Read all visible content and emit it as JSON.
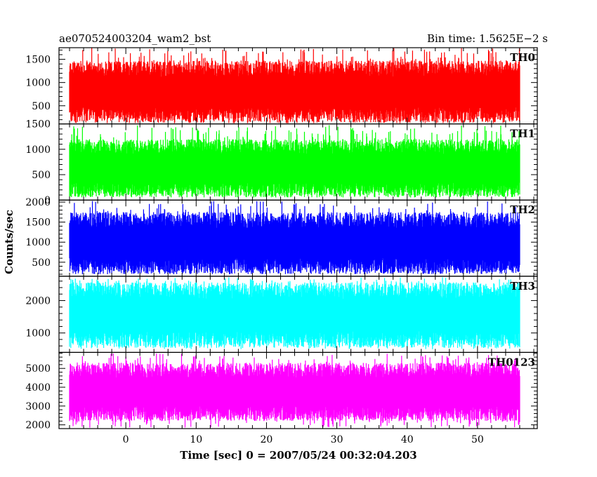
{
  "header": {
    "title": "ae070524003204_wam2_bst",
    "bin_time": "Bin time: 1.5625E−2 s"
  },
  "ylabel": "Counts/sec",
  "xlabel": "Time [sec] 0 = 2007/05/24 00:32:04.203",
  "chart_data": {
    "type": "line",
    "x_range": [
      -8.0,
      56.0
    ],
    "xlim": [
      -9.5,
      58.5
    ],
    "x_ticks": [
      0,
      10,
      20,
      30,
      40,
      50
    ],
    "x_tick_labels": [
      "0",
      "10",
      "20",
      "30",
      "40",
      "50"
    ],
    "bin_time": 0.015625,
    "panels": [
      {
        "name": "TH0",
        "color": "#ff0000",
        "ylim": [
          110,
          1750
        ],
        "ticks": [
          500,
          1000,
          1500
        ],
        "tick_labels": [
          "500",
          "1000",
          "1500"
        ],
        "typical_range": [
          300,
          1300
        ],
        "extreme_range": [
          160,
          1750
        ]
      },
      {
        "name": "TH1",
        "color": "#00ff00",
        "ylim": [
          0,
          1500
        ],
        "ticks": [
          0,
          500,
          1000,
          1500
        ],
        "tick_labels": [
          "0",
          "500",
          "1000",
          "1500"
        ],
        "typical_range": [
          200,
          1050
        ],
        "extreme_range": [
          60,
          1480
        ]
      },
      {
        "name": "TH2",
        "color": "#0000ff",
        "ylim": [
          150,
          2050
        ],
        "ticks": [
          500,
          1000,
          1500,
          2000
        ],
        "tick_labels": [
          "500",
          "1000",
          "1500",
          "2000"
        ],
        "typical_range": [
          400,
          1550
        ],
        "extreme_range": [
          200,
          2030
        ]
      },
      {
        "name": "TH3",
        "color": "#00ffff",
        "ylim": [
          400,
          2750
        ],
        "ticks": [
          1000,
          2000
        ],
        "tick_labels": [
          "1000",
          "2000"
        ],
        "typical_range": [
          800,
          2300
        ],
        "extreme_range": [
          500,
          2720
        ]
      },
      {
        "name": "TH0123",
        "color": "#ff00ff",
        "ylim": [
          1800,
          5850
        ],
        "ticks": [
          2000,
          3000,
          4000,
          5000
        ],
        "tick_labels": [
          "2000",
          "3000",
          "4000",
          "5000"
        ],
        "typical_range": [
          2600,
          4900
        ],
        "extreme_range": [
          1850,
          5800
        ]
      }
    ]
  }
}
